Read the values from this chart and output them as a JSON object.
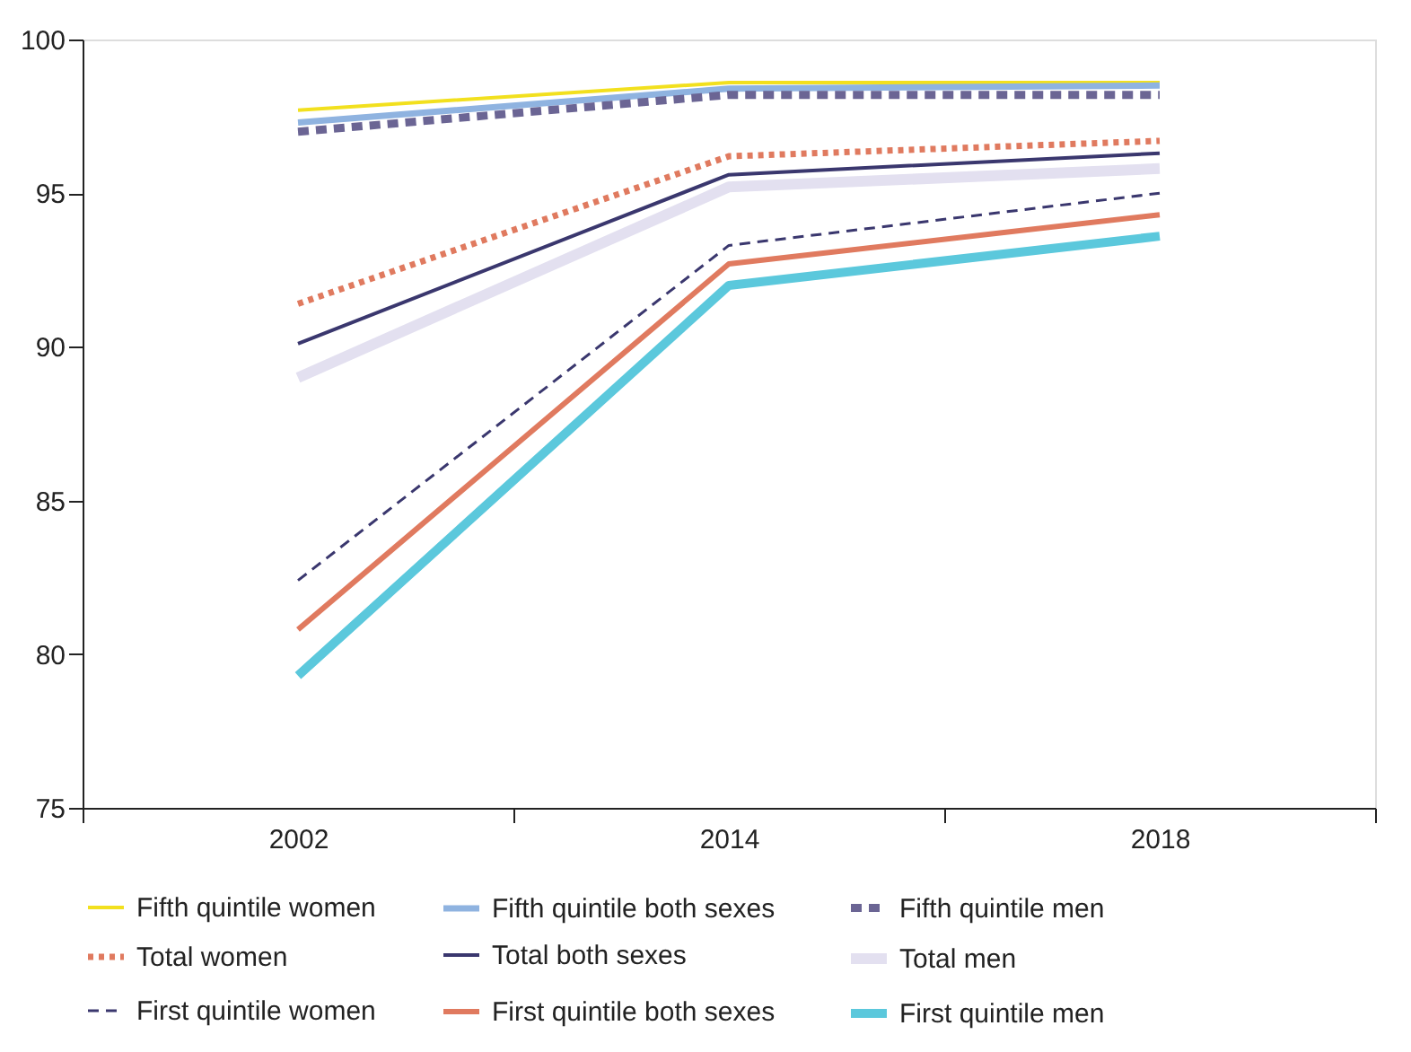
{
  "chart_data": {
    "type": "line",
    "categories": [
      "2002",
      "2014",
      "2018"
    ],
    "ylim": [
      75,
      100
    ],
    "yticks": [
      75,
      80,
      85,
      90,
      95,
      100
    ],
    "grid": false,
    "legend": "bottom",
    "marker": "none",
    "series": [
      {
        "name": "Fifth quintile women",
        "color": "#f2e01e",
        "line_style": "solid",
        "values": [
          97.7,
          98.6,
          98.6
        ]
      },
      {
        "name": "Fifth quintile both sexes",
        "color": "#8fb3e0",
        "line_style": "solid",
        "values": [
          97.3,
          98.4,
          98.5
        ]
      },
      {
        "name": "Fifth quintile men",
        "color": "#6b6594",
        "line_style": "dashed",
        "values": [
          97.0,
          98.2,
          98.2
        ]
      },
      {
        "name": "Total women",
        "color": "#e07a5f",
        "line_style": "dotted",
        "values": [
          91.4,
          96.2,
          96.7
        ]
      },
      {
        "name": "Total both sexes",
        "color": "#3a376e",
        "line_style": "solid",
        "values": [
          90.1,
          95.6,
          96.3
        ]
      },
      {
        "name": "Total men",
        "color": "#e3e0f0",
        "line_style": "solid",
        "values": [
          89.0,
          95.2,
          95.8
        ]
      },
      {
        "name": "First quintile women",
        "color": "#3a376e",
        "line_style": "dashed",
        "values": [
          82.4,
          93.3,
          95.0
        ]
      },
      {
        "name": "First quintile both sexes",
        "color": "#e07a5f",
        "line_style": "solid",
        "values": [
          80.8,
          92.7,
          94.3
        ]
      },
      {
        "name": "First quintile men",
        "color": "#5bc8dc",
        "line_style": "solid",
        "values": [
          79.3,
          92.0,
          93.6
        ]
      }
    ]
  }
}
